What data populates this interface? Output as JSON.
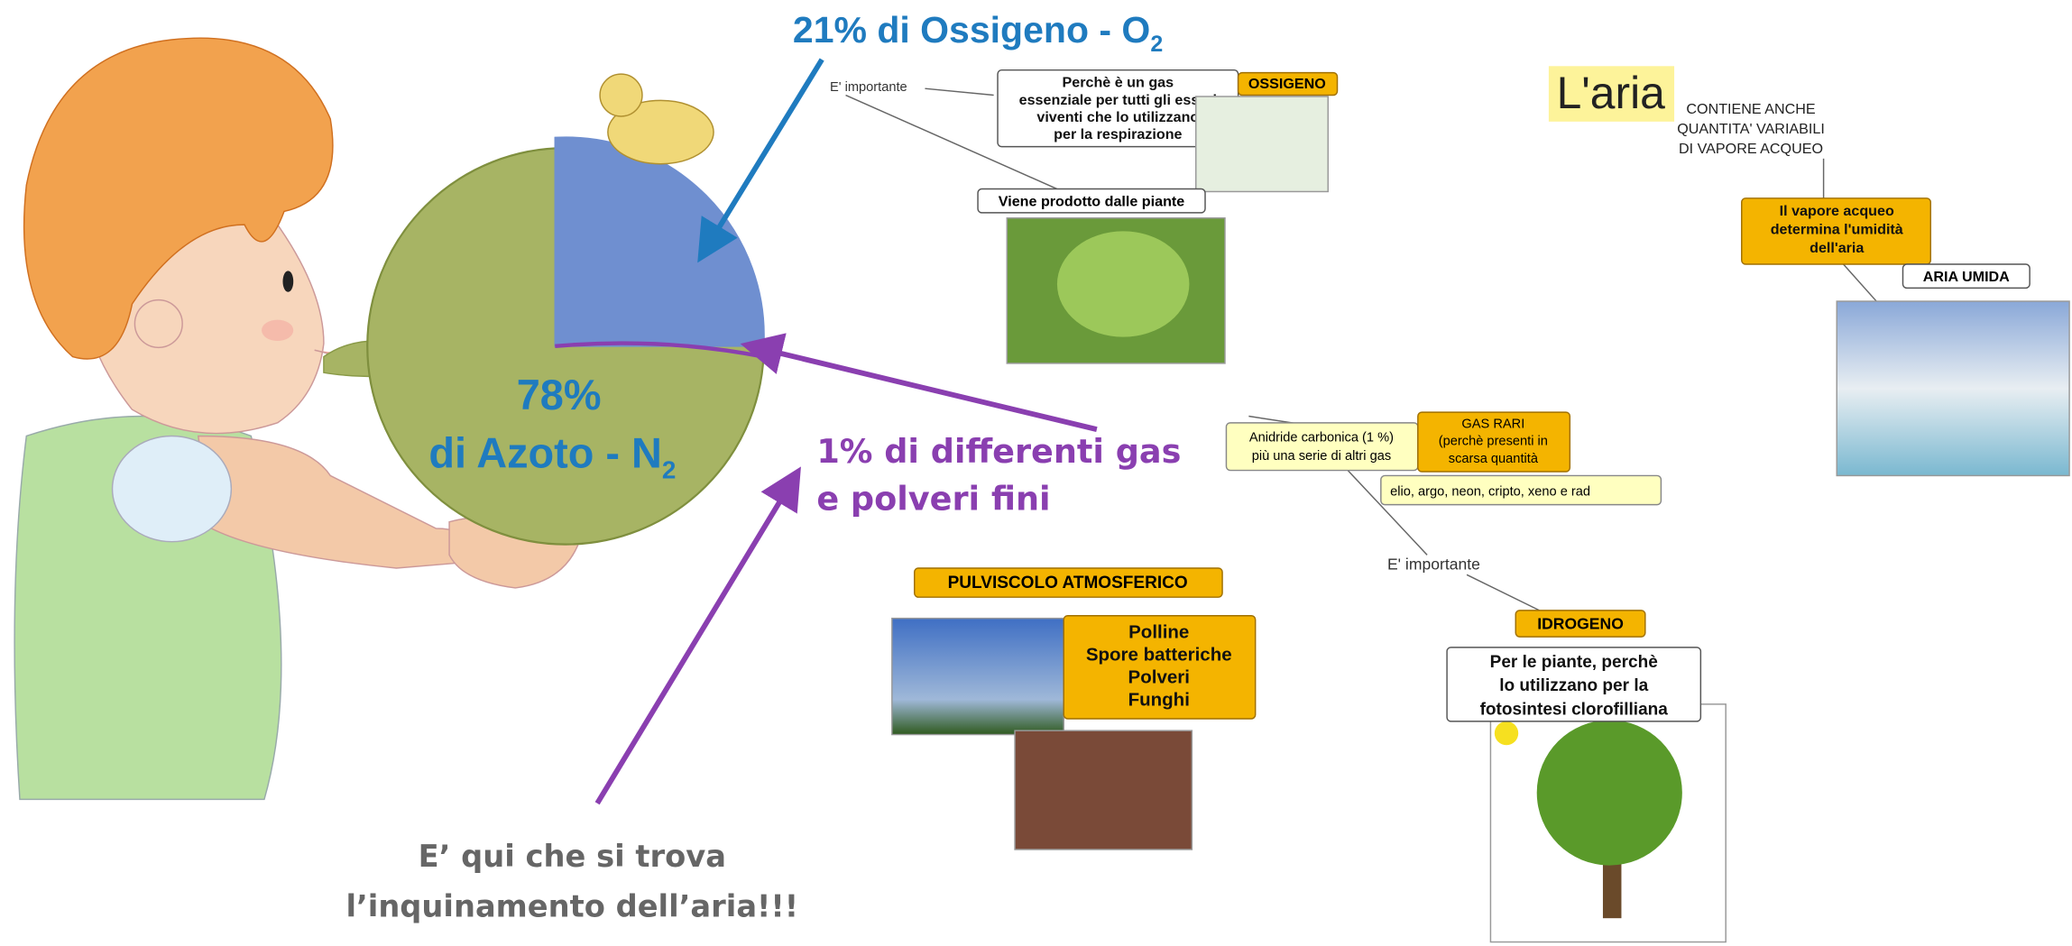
{
  "oxygen_label": {
    "text": "21% di Ossigeno - O",
    "subscript": "2"
  },
  "nitrogen_label": {
    "percent": "78%",
    "text": "di Azoto - N",
    "subscript": "2"
  },
  "other_gases_label": [
    "1% di differenti gas",
    "e polveri fini"
  ],
  "pollution_note": [
    "E’ qui che si trova",
    "l’inquinamento dell’aria!!!"
  ],
  "concept_map": {
    "title": "L'aria",
    "contains": [
      "CONTIENE ANCHE",
      "QUANTITA' VARIABILI",
      "DI VAPORE ACQUEO"
    ],
    "humidity": [
      "Il vapore acqueo",
      "determina l'umidità",
      "dell'aria"
    ],
    "humid_air": "ARIA UMIDA",
    "oxygen": {
      "link": "E' importante",
      "reason": [
        "Perchè è un gas",
        "essenziale per tutti gli esseri",
        "viventi che lo utilizzano",
        "per la respirazione"
      ],
      "label": "OSSIGENO",
      "source": "Viene prodotto dalle piante"
    },
    "rare_gases": {
      "co2": [
        "Anidride carbonica (1 %)",
        "più una serie di altri gas"
      ],
      "label": [
        "GAS RARI",
        "(perchè presenti in",
        "scarsa quantità"
      ],
      "list": "elio, argo, neon, cripto, xeno e rad"
    },
    "hydrogen": {
      "link": "E' importante",
      "label": "IDROGENO",
      "reason": [
        "Per le piante, perchè",
        "lo utilizzano per la",
        "fotosintesi clorofilliana"
      ]
    },
    "dust": {
      "label": "PULVISCOLO ATMOSFERICO",
      "items": [
        "Polline",
        "Spore batteriche",
        "Polveri",
        "Funghi"
      ]
    }
  }
}
